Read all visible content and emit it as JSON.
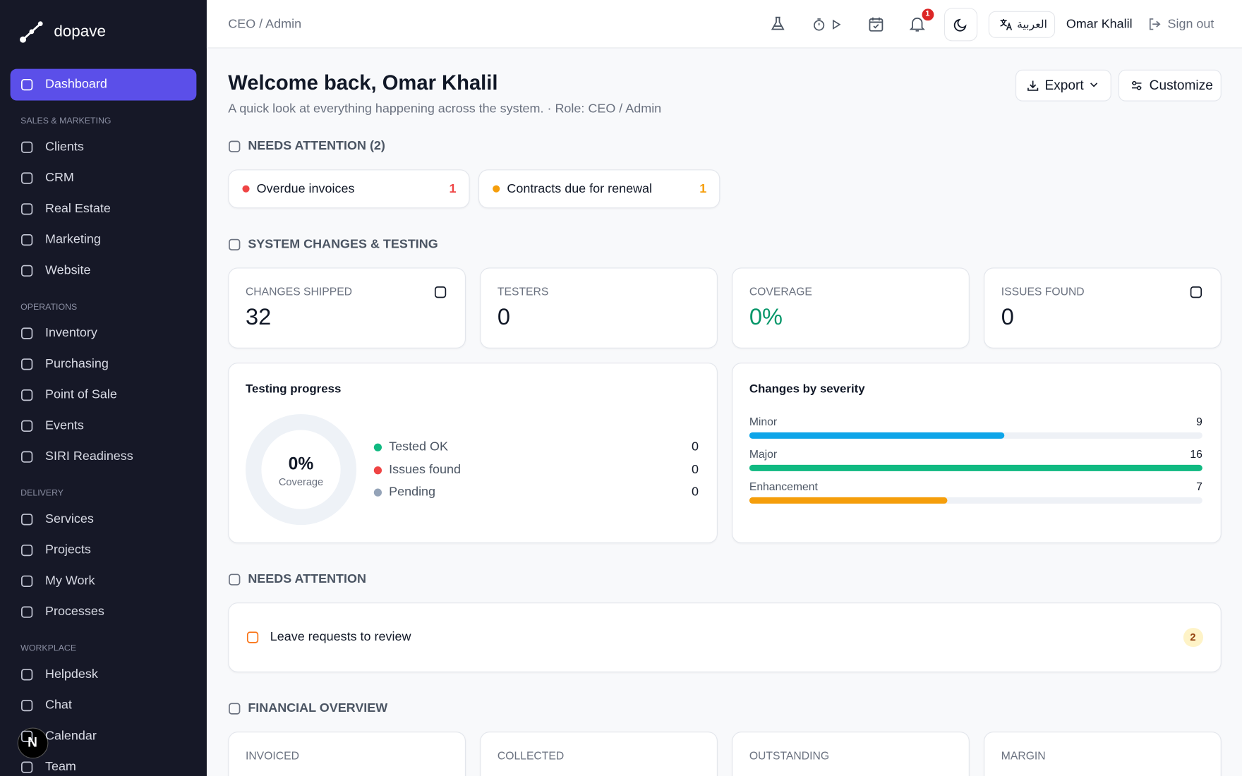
{
  "sidebar": {
    "brand": "dopave",
    "nav": [
      {
        "items": [
          "Dashboard"
        ]
      },
      {
        "label": "SALES & MARKETING",
        "items": [
          "Clients",
          "CRM",
          "Real Estate",
          "Marketing",
          "Website"
        ]
      },
      {
        "label": "OPERATIONS",
        "items": [
          "Inventory",
          "Purchasing",
          "Point of Sale",
          "Events",
          "SIRI Readiness"
        ]
      },
      {
        "label": "DELIVERY",
        "items": [
          "Services",
          "Projects",
          "My Work",
          "Processes"
        ]
      },
      {
        "label": "WORKPLACE",
        "items": [
          "Helpdesk",
          "Chat",
          "Calendar",
          "Team"
        ]
      }
    ]
  },
  "avatar": "N",
  "topbar": {
    "breadcrumb": "CEO / Admin",
    "notifications": 1,
    "language": "العربية",
    "user": "Omar Khalil",
    "sign_out": "Sign out"
  },
  "header": {
    "title": "Welcome back, Omar Khalil",
    "subtitle": "A quick look at everything happening across the system. · Role: CEO / Admin",
    "actions": [
      "Export",
      "Customize"
    ]
  },
  "needs_attention_top": {
    "title": "NEEDS ATTENTION (2)",
    "items": [
      {
        "label": "Overdue invoices",
        "count": 1,
        "color": "#ef4444"
      },
      {
        "label": "Contracts due for renewal",
        "count": 1,
        "color": "#f59e0b"
      }
    ]
  },
  "system_changes": {
    "title": "SYSTEM CHANGES & TESTING",
    "stats": [
      {
        "label": "CHANGES SHIPPED",
        "value": 32
      },
      {
        "label": "TESTERS",
        "value": 0
      },
      {
        "label": "COVERAGE",
        "value": 0,
        "value_label": "0%"
      },
      {
        "label": "ISSUES FOUND",
        "value": 0
      }
    ],
    "testing_progress": {
      "title": "Testing progress",
      "coverage": 0,
      "coverage_label": "0%",
      "coverage_caption": "Coverage",
      "legend": [
        {
          "name": "Tested OK",
          "value": 0,
          "color": "#10b981"
        },
        {
          "name": "Issues found",
          "value": 0,
          "color": "#ef4444"
        },
        {
          "name": "Pending",
          "value": 0,
          "color": "#94a3b8"
        }
      ]
    },
    "severity": {
      "title": "Changes by severity",
      "categories": [
        "Minor",
        "Major",
        "Enhancement"
      ],
      "values": [
        9,
        16,
        7
      ],
      "colors": [
        "#0ea5e9",
        "#10b981",
        "#f59e0b"
      ]
    }
  },
  "needs_attention": {
    "title": "NEEDS ATTENTION",
    "items": [
      {
        "label": "Leave requests to review",
        "count": 2
      }
    ]
  },
  "financial": {
    "title": "FINANCIAL OVERVIEW",
    "cards": [
      "INVOICED",
      "COLLECTED",
      "OUTSTANDING",
      "MARGIN"
    ]
  }
}
